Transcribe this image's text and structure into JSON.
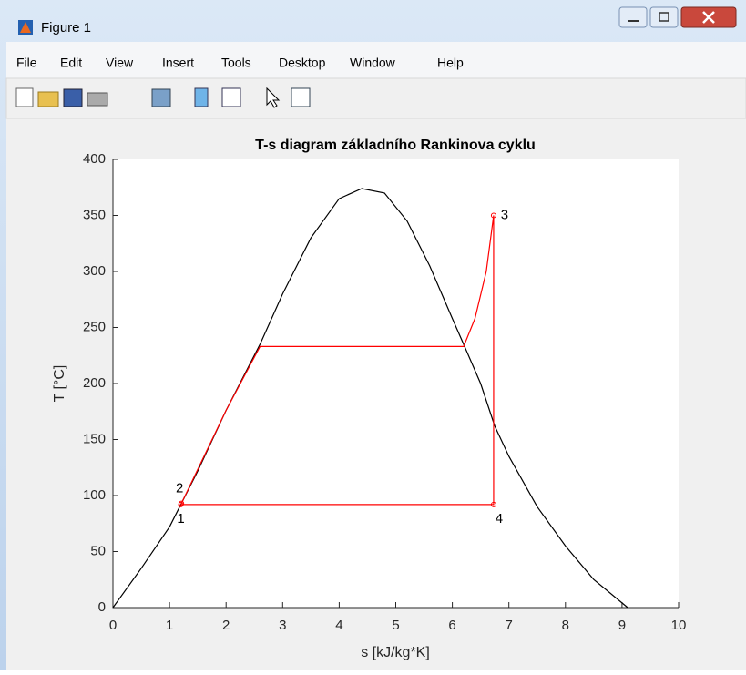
{
  "window": {
    "title": "Figure 1"
  },
  "menu": [
    "File",
    "Edit",
    "View",
    "Insert",
    "Tools",
    "Desktop",
    "Window",
    "Help"
  ],
  "chart_data": {
    "type": "line",
    "title": "T-s diagram základního Rankinova cyklu",
    "x_label": "s [kJ/kg*K]",
    "y_label": "T [°C]",
    "xlim": [
      0,
      10
    ],
    "xticks": [
      0,
      1,
      2,
      3,
      4,
      5,
      6,
      7,
      8,
      9,
      10
    ],
    "ylim": [
      0,
      400
    ],
    "yticks": [
      0,
      50,
      100,
      150,
      200,
      250,
      300,
      350,
      400
    ],
    "series": [
      {
        "color": "#000000",
        "x": [
          0,
          0.5,
          1.0,
          1.5,
          2.0,
          2.6,
          3.0,
          3.5,
          4.0,
          4.4,
          4.8,
          5.2,
          5.6,
          6.0,
          6.2,
          6.5,
          6.75,
          7.0,
          7.5,
          8.0,
          8.5,
          9.1
        ],
        "values": [
          0,
          35,
          72,
          122,
          176,
          235,
          280,
          330,
          365,
          374,
          370,
          345,
          305,
          258,
          235,
          200,
          162,
          135,
          90,
          55,
          25,
          0
        ]
      },
      {
        "color": "#ff0000",
        "x": [
          1.2,
          1.21,
          2.0,
          2.6,
          6.2,
          6.4,
          6.6,
          6.73,
          6.73,
          1.2
        ],
        "values": [
          92,
          93,
          176,
          233,
          233,
          258,
          300,
          350,
          92,
          92
        ]
      }
    ],
    "points": [
      {
        "label": "1",
        "x": 1.2,
        "y": 92
      },
      {
        "label": "2",
        "x": 1.21,
        "y": 93
      },
      {
        "label": "3",
        "x": 6.73,
        "y": 350
      },
      {
        "label": "4",
        "x": 6.73,
        "y": 92
      }
    ]
  }
}
